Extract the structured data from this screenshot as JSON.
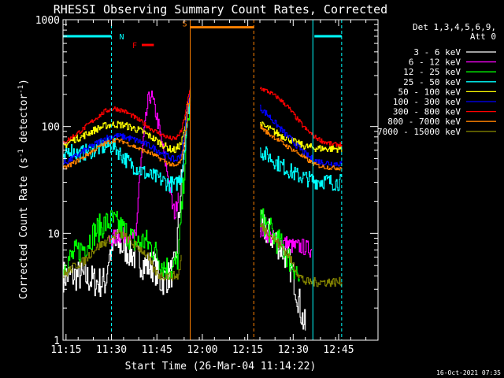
{
  "chart_data": {
    "type": "line",
    "title": "RHESSI Observing Summary Count Rates, Corrected",
    "xlabel": "Start Time (26-Mar-04 11:14:22)",
    "ylabel": "Corrected Count Rate (s⁻¹ detector⁻¹)",
    "ylabel_parts": {
      "pre": "Corrected Count Rate (s",
      "sup1": "-1",
      "mid": " detector",
      "sup2": "-1",
      "post": ")"
    },
    "yscale": "log",
    "xlim": [
      674,
      778
    ],
    "ylim": [
      1,
      1000
    ],
    "x_ticks": [
      {
        "v": 675,
        "label": "11:15"
      },
      {
        "v": 690,
        "label": "11:30"
      },
      {
        "v": 705,
        "label": "11:45"
      },
      {
        "v": 720,
        "label": "12:00"
      },
      {
        "v": 735,
        "label": "12:15"
      },
      {
        "v": 750,
        "label": "12:30"
      },
      {
        "v": 765,
        "label": "12:45"
      }
    ],
    "y_ticks": [
      {
        "v": 1,
        "label": "1"
      },
      {
        "v": 10,
        "label": "10"
      },
      {
        "v": 100,
        "label": "100"
      },
      {
        "v": 1000,
        "label": "1000"
      }
    ],
    "legend": {
      "header": [
        "Det 1,3,4,5,6,9,",
        "Att 0"
      ],
      "placement": "right"
    },
    "series": [
      {
        "name": "3 - 6 keV",
        "color": "#ffffff",
        "noise": 0.35,
        "segments": [
          [
            [
              674,
              4
            ],
            [
              680,
              4
            ],
            [
              685,
              3.5
            ],
            [
              688,
              3.5
            ],
            [
              689,
              6
            ],
            [
              690,
              7
            ],
            [
              692,
              8
            ],
            [
              695,
              7
            ],
            [
              698,
              6
            ],
            [
              701,
              5
            ],
            [
              704,
              5
            ],
            [
              706,
              3.5
            ],
            [
              709,
              4
            ],
            [
              711,
              5
            ],
            [
              712,
              12
            ],
            [
              713,
              30
            ],
            [
              714,
              60
            ],
            [
              715,
              130
            ]
          ],
          [
            [
              739,
              12
            ],
            [
              742,
              10
            ],
            [
              745,
              8
            ],
            [
              748,
              6
            ],
            [
              750,
              4
            ],
            [
              752,
              2.2
            ],
            [
              753,
              1.6
            ],
            [
              754,
              1.3
            ]
          ]
        ]
      },
      {
        "name": "6 - 12 keV",
        "color": "#ff00ff",
        "noise": 0.18,
        "segments": [
          [
            [
              689,
              8.5
            ],
            [
              692,
              9.5
            ],
            [
              696,
              9.5
            ],
            [
              698,
              9
            ],
            [
              699,
              30
            ],
            [
              701,
              100
            ],
            [
              702,
              170
            ],
            [
              703,
              200
            ],
            [
              705,
              120
            ],
            [
              707,
              60
            ],
            [
              709,
              30
            ],
            [
              710,
              18
            ],
            [
              711,
              15
            ],
            [
              712,
              25
            ]
          ],
          [
            [
              739,
              11
            ],
            [
              742,
              9.5
            ],
            [
              745,
              8.5
            ],
            [
              748,
              8
            ],
            [
              750,
              7.5
            ],
            [
              753,
              7.5
            ],
            [
              756,
              7
            ]
          ]
        ]
      },
      {
        "name": "12 - 25 keV",
        "color": "#00ff00",
        "noise": 0.3,
        "segments": [
          [
            [
              674,
              5
            ],
            [
              678,
              6.5
            ],
            [
              681,
              7.5
            ],
            [
              684,
              10
            ],
            [
              687,
              12
            ],
            [
              690,
              13
            ],
            [
              692,
              12
            ],
            [
              695,
              10
            ],
            [
              698,
              8
            ],
            [
              701,
              8.5
            ],
            [
              704,
              7
            ],
            [
              707,
              5
            ],
            [
              710,
              4.5
            ],
            [
              712,
              6
            ],
            [
              713,
              15
            ],
            [
              714,
              40
            ],
            [
              715,
              100
            ],
            [
              716,
              180
            ]
          ],
          [
            [
              739,
              14
            ],
            [
              741,
              12
            ],
            [
              744,
              9
            ],
            [
              747,
              7
            ],
            [
              749,
              5.5
            ],
            [
              751,
              4.5
            ],
            [
              752,
              3.5
            ]
          ]
        ]
      },
      {
        "name": "25 - 50 keV",
        "color": "#00ffff",
        "noise": 0.18,
        "segments": [
          [
            [
              674,
              45
            ],
            [
              676,
              62
            ],
            [
              679,
              55
            ],
            [
              682,
              58
            ],
            [
              686,
              63
            ],
            [
              689,
              66
            ],
            [
              691,
              65
            ],
            [
              693,
              55
            ],
            [
              696,
              45
            ],
            [
              699,
              40
            ],
            [
              702,
              35
            ],
            [
              705,
              33
            ],
            [
              708,
              30
            ],
            [
              711,
              28
            ],
            [
              713,
              35
            ],
            [
              714,
              60
            ],
            [
              715,
              120
            ],
            [
              716,
              200
            ]
          ],
          [
            [
              739,
              60
            ],
            [
              742,
              52
            ],
            [
              745,
              45
            ],
            [
              748,
              40
            ],
            [
              751,
              35
            ],
            [
              754,
              33
            ],
            [
              757,
              31
            ],
            [
              760,
              31
            ],
            [
              763,
              30
            ],
            [
              766,
              30
            ]
          ]
        ]
      },
      {
        "name": "50 - 100 keV",
        "color": "#ffff00",
        "noise": 0.08,
        "segments": [
          [
            [
              674,
              65
            ],
            [
              677,
              75
            ],
            [
              680,
              80
            ],
            [
              684,
              92
            ],
            [
              688,
              102
            ],
            [
              691,
              105
            ],
            [
              694,
              103
            ],
            [
              697,
              97
            ],
            [
              700,
              90
            ],
            [
              703,
              80
            ],
            [
              706,
              70
            ],
            [
              709,
              62
            ],
            [
              711,
              60
            ],
            [
              713,
              70
            ],
            [
              714,
              90
            ],
            [
              715,
              150
            ],
            [
              716,
              230
            ]
          ],
          [
            [
              739,
              105
            ],
            [
              742,
              95
            ],
            [
              745,
              85
            ],
            [
              748,
              78
            ],
            [
              751,
              70
            ],
            [
              754,
              65
            ],
            [
              757,
              63
            ],
            [
              760,
              62
            ],
            [
              763,
              62
            ],
            [
              766,
              62
            ]
          ]
        ]
      },
      {
        "name": "100 - 300 keV",
        "color": "#0000ff",
        "noise": 0.07,
        "segments": [
          [
            [
              674,
              45
            ],
            [
              677,
              50
            ],
            [
              680,
              57
            ],
            [
              684,
              67
            ],
            [
              688,
              78
            ],
            [
              691,
              82
            ],
            [
              694,
              80
            ],
            [
              697,
              76
            ],
            [
              700,
              71
            ],
            [
              703,
              65
            ],
            [
              706,
              58
            ],
            [
              709,
              52
            ],
            [
              711,
              48
            ],
            [
              713,
              55
            ],
            [
              714,
              80
            ],
            [
              715,
              150
            ],
            [
              716,
              230
            ]
          ],
          [
            [
              739,
              150
            ],
            [
              742,
              125
            ],
            [
              745,
              100
            ],
            [
              748,
              82
            ],
            [
              751,
              67
            ],
            [
              754,
              55
            ],
            [
              757,
              48
            ],
            [
              760,
              46
            ],
            [
              763,
              45
            ],
            [
              766,
              45
            ]
          ]
        ]
      },
      {
        "name": "300 - 800 keV",
        "color": "#ff0000",
        "noise": 0.05,
        "segments": [
          [
            [
              674,
              70
            ],
            [
              677,
              80
            ],
            [
              680,
              92
            ],
            [
              684,
              115
            ],
            [
              688,
              140
            ],
            [
              691,
              148
            ],
            [
              694,
              140
            ],
            [
              697,
              125
            ],
            [
              700,
              110
            ],
            [
              703,
              95
            ],
            [
              706,
              85
            ],
            [
              709,
              78
            ],
            [
              711,
              76
            ],
            [
              713,
              90
            ],
            [
              714,
              120
            ],
            [
              715,
              170
            ],
            [
              716,
              230
            ]
          ],
          [
            [
              739,
              230
            ],
            [
              742,
              210
            ],
            [
              745,
              185
            ],
            [
              748,
              155
            ],
            [
              751,
              120
            ],
            [
              754,
              95
            ],
            [
              757,
              80
            ],
            [
              760,
              72
            ],
            [
              763,
              68
            ],
            [
              766,
              68
            ]
          ]
        ]
      },
      {
        "name": "800 - 7000 keV",
        "color": "#ff8000",
        "noise": 0.05,
        "segments": [
          [
            [
              674,
              40
            ],
            [
              677,
              45
            ],
            [
              680,
              50
            ],
            [
              684,
              60
            ],
            [
              688,
              70
            ],
            [
              691,
              75
            ],
            [
              694,
              72
            ],
            [
              697,
              66
            ],
            [
              700,
              60
            ],
            [
              703,
              56
            ],
            [
              706,
              50
            ],
            [
              709,
              45
            ],
            [
              711,
              42
            ],
            [
              713,
              48
            ],
            [
              714,
              70
            ],
            [
              715,
              130
            ],
            [
              716,
              220
            ]
          ],
          [
            [
              739,
              100
            ],
            [
              742,
              85
            ],
            [
              745,
              75
            ],
            [
              748,
              65
            ],
            [
              751,
              58
            ],
            [
              754,
              50
            ],
            [
              757,
              44
            ],
            [
              760,
              42
            ],
            [
              763,
              41
            ],
            [
              766,
              41
            ]
          ]
        ]
      },
      {
        "name": "7000 - 15000 keV",
        "color": "#808000",
        "noise": 0.1,
        "segments": [
          [
            [
              674,
              4
            ],
            [
              678,
              5
            ],
            [
              681,
              5.5
            ],
            [
              684,
              7
            ],
            [
              687,
              8
            ],
            [
              690,
              9
            ],
            [
              692,
              10
            ],
            [
              694,
              9.5
            ],
            [
              697,
              8
            ],
            [
              700,
              7
            ],
            [
              702,
              6
            ],
            [
              704,
              4.5
            ],
            [
              706,
              4
            ],
            [
              710,
              4
            ],
            [
              712,
              4
            ],
            [
              713,
              6
            ]
          ],
          [
            [
              739,
              12
            ],
            [
              742,
              10
            ],
            [
              745,
              8
            ],
            [
              748,
              6.5
            ],
            [
              750,
              5
            ],
            [
              752,
              4
            ],
            [
              754,
              3.5
            ],
            [
              757,
              3.5
            ],
            [
              760,
              3.5
            ],
            [
              763,
              3.5
            ],
            [
              766,
              3.5
            ]
          ]
        ]
      }
    ],
    "annotations": {
      "attenuator_bars": [
        {
          "x0": 674,
          "x1": 690,
          "y": 700
        },
        {
          "x0": 757,
          "x1": 766,
          "y": 700
        }
      ],
      "night_lines": [
        690,
        766
      ],
      "night_label": "N",
      "flare_label": "F",
      "flare_bar": {
        "x0": 700,
        "x1": 704,
        "y": 580
      },
      "saa_label": "S",
      "saa_bar": {
        "x0": 716,
        "x1": 737,
        "y": 850
      },
      "saa_start_x": 716,
      "saa_end_x": 737,
      "day_lines": [
        756.5
      ]
    },
    "colors": {
      "night": "#00ffff",
      "saa": "#ff8000",
      "flare": "#ff0000"
    }
  },
  "footer": {
    "timestamp": "16-Oct-2021 07:35"
  }
}
